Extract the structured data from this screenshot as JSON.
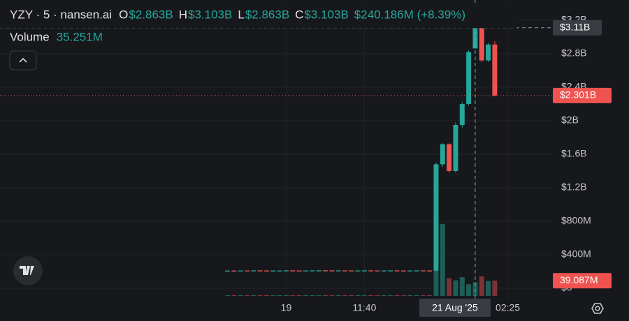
{
  "chart_data": {
    "type": "candlestick",
    "header": {
      "symbol": "YZY · 5 · nansen.ai",
      "ohlc": [
        {
          "key": "O",
          "value": "$2.863B"
        },
        {
          "key": "H",
          "value": "$3.103B"
        },
        {
          "key": "L",
          "value": "$2.863B"
        },
        {
          "key": "C",
          "value": "$3.103B"
        }
      ],
      "change": "$240.186M (+8.39%)",
      "volume_title": "Volume",
      "volume_value": "35.251M"
    },
    "x": [
      0,
      1,
      2,
      3,
      4,
      5,
      6,
      7,
      8,
      9,
      10,
      11,
      12,
      13,
      14,
      15,
      16,
      17,
      18,
      19,
      20,
      21,
      22,
      23,
      24,
      25,
      26,
      27,
      28,
      29,
      30,
      31,
      32,
      33,
      34,
      35,
      36,
      37,
      38,
      39,
      40,
      41
    ],
    "open": [
      209000000,
      211000000,
      210000000,
      212000000,
      211000000,
      213000000,
      212000000,
      210000000,
      211000000,
      212000000,
      213000000,
      212000000,
      211000000,
      212000000,
      213000000,
      214000000,
      213000000,
      212000000,
      213000000,
      212000000,
      211000000,
      212000000,
      213000000,
      212000000,
      211000000,
      212000000,
      213000000,
      212000000,
      211000000,
      212000000,
      213000000,
      212000000,
      210000000,
      1480000000,
      1720000000,
      1400000000,
      1950000000,
      2200000000,
      2863000000,
      3103000000,
      2720000000,
      2910000000
    ],
    "high": [
      212000000,
      212000000,
      213000000,
      213000000,
      214000000,
      214000000,
      213000000,
      212000000,
      213000000,
      214000000,
      214000000,
      213000000,
      213000000,
      214000000,
      215000000,
      215000000,
      214000000,
      214000000,
      214000000,
      213000000,
      213000000,
      214000000,
      214000000,
      213000000,
      213000000,
      214000000,
      214000000,
      213000000,
      213000000,
      214000000,
      214000000,
      213000000,
      1500000000,
      1730000000,
      1730000000,
      1980000000,
      2220000000,
      2840000000,
      3103000000,
      3110000000,
      2930000000,
      2950000000
    ],
    "low": [
      208000000,
      209000000,
      209000000,
      210000000,
      210000000,
      211000000,
      209000000,
      209000000,
      210000000,
      211000000,
      211000000,
      210000000,
      210000000,
      211000000,
      212000000,
      212000000,
      211000000,
      211000000,
      211000000,
      210000000,
      210000000,
      211000000,
      211000000,
      210000000,
      210000000,
      211000000,
      211000000,
      210000000,
      210000000,
      211000000,
      211000000,
      209000000,
      200000000,
      1450000000,
      1380000000,
      1380000000,
      1920000000,
      2180000000,
      2863000000,
      2700000000,
      2700000000,
      2290000000
    ],
    "close": [
      211000000,
      210000000,
      212000000,
      211000000,
      213000000,
      212000000,
      210000000,
      211000000,
      212000000,
      213000000,
      212000000,
      211000000,
      212000000,
      213000000,
      214000000,
      213000000,
      212000000,
      213000000,
      212000000,
      211000000,
      212000000,
      213000000,
      212000000,
      211000000,
      212000000,
      213000000,
      212000000,
      211000000,
      212000000,
      213000000,
      212000000,
      210000000,
      1480000000,
      1720000000,
      1400000000,
      1950000000,
      2200000000,
      2820000000,
      3103000000,
      2720000000,
      2910000000,
      2301000000
    ],
    "volume": [
      2000000,
      2000000,
      2000000,
      2000000,
      2000000,
      2000000,
      2000000,
      2000000,
      2000000,
      2000000,
      2000000,
      2000000,
      2000000,
      2000000,
      2000000,
      2000000,
      2000000,
      2000000,
      2000000,
      2000000,
      2000000,
      2000000,
      2000000,
      2000000,
      2000000,
      2000000,
      2000000,
      2000000,
      2000000,
      2000000,
      2000000,
      2000000,
      190000000,
      185000000,
      45000000,
      40000000,
      48000000,
      30000000,
      35251000,
      50000000,
      38000000,
      39087000
    ],
    "up_color": "#26a69a",
    "down_color": "#ef5350",
    "volume_up_color": "#1d5f57",
    "volume_down_color": "#7c3237",
    "xlim": [
      -34.9,
      49.8
    ],
    "xticks": [
      {
        "value": 9,
        "label": "19"
      },
      {
        "value": 21,
        "label": "11:40"
      },
      {
        "value": 43,
        "label": "02:25"
      }
    ],
    "ylim": [
      -200000000,
      3400000000
    ],
    "yticks": [
      {
        "value": 0,
        "label": "$0"
      },
      {
        "value": 400000000,
        "label": "$400M"
      },
      {
        "value": 800000000,
        "label": "$800M"
      },
      {
        "value": 1200000000,
        "label": "$1.2B"
      },
      {
        "value": 1600000000,
        "label": "$1.6B"
      },
      {
        "value": 2000000000,
        "label": "$2B"
      },
      {
        "value": 2400000000,
        "label": "$2.4B"
      },
      {
        "value": 2800000000,
        "label": "$2.8B"
      },
      {
        "value": 3200000000,
        "label": "$3.2B"
      }
    ],
    "grid": true,
    "last_price": {
      "value": 2301000000,
      "label": "$2.301B"
    },
    "last_volume": {
      "value": 39087000,
      "label": "39.087M"
    },
    "crosshair": {
      "x": 38,
      "x_label": "21 Aug '25",
      "y": {
        "value": 3110000000,
        "label": "$3.11B"
      }
    }
  }
}
